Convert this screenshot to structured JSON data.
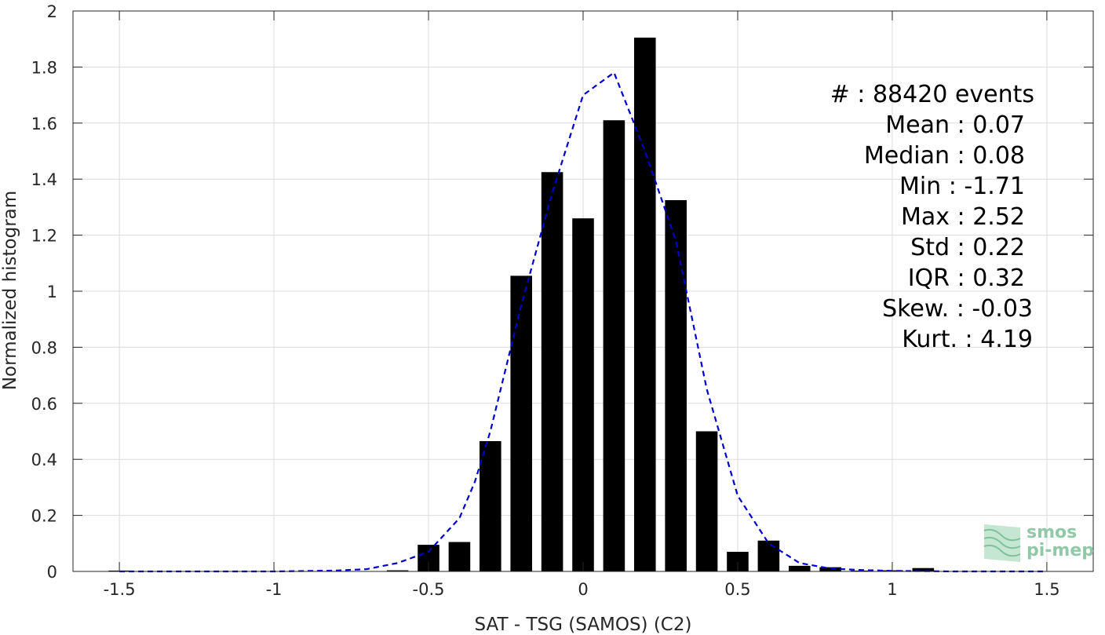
{
  "chart_data": {
    "type": "bar",
    "xlabel": "SAT - TSG (SAMOS) (C2)",
    "ylabel": "Normalized histogram",
    "xlim": [
      -1.65,
      1.65
    ],
    "ylim": [
      0,
      2
    ],
    "grid": true,
    "xticks": [
      "-1.5",
      "-1",
      "-0.5",
      "0",
      "0.5",
      "1",
      "1.5"
    ],
    "xtick_values": [
      -1.5,
      -1,
      -0.5,
      0,
      0.5,
      1,
      1.5
    ],
    "yticks": [
      "0",
      "0.2",
      "0.4",
      "0.6",
      "0.8",
      "1",
      "1.2",
      "1.4",
      "1.6",
      "1.8",
      "2"
    ],
    "ytick_values": [
      0,
      0.2,
      0.4,
      0.6,
      0.8,
      1,
      1.2,
      1.4,
      1.6,
      1.8,
      2
    ],
    "bar_width": 0.07,
    "bars": {
      "x": [
        -1.5,
        -0.6,
        -0.5,
        -0.4,
        -0.3,
        -0.2,
        -0.1,
        0.0,
        0.1,
        0.2,
        0.3,
        0.4,
        0.5,
        0.6,
        0.7,
        0.8,
        0.9,
        1.0,
        1.1
      ],
      "values": [
        0.003,
        0.004,
        0.095,
        0.105,
        0.465,
        1.055,
        1.425,
        1.26,
        1.61,
        1.905,
        1.325,
        0.5,
        0.07,
        0.11,
        0.02,
        0.015,
        0.003,
        0.004,
        0.012
      ]
    },
    "fit_line": {
      "style": "dashed",
      "color": "#0000cc",
      "x": [
        -1.5,
        -1.2,
        -1.0,
        -0.8,
        -0.7,
        -0.6,
        -0.5,
        -0.4,
        -0.35,
        -0.3,
        -0.2,
        -0.1,
        0.0,
        0.1,
        0.2,
        0.3,
        0.4,
        0.5,
        0.6,
        0.7,
        0.8,
        0.9,
        1.0,
        1.1,
        1.2,
        1.3,
        1.5
      ],
      "y": [
        0.0,
        0.0,
        0.0,
        0.003,
        0.008,
        0.03,
        0.07,
        0.19,
        0.32,
        0.5,
        0.95,
        1.35,
        1.7,
        1.78,
        1.5,
        1.18,
        0.65,
        0.27,
        0.1,
        0.03,
        0.01,
        0.005,
        0.002,
        0.001,
        0.0,
        0.0,
        0.0
      ]
    },
    "annotations": [
      "#  : 88420 events",
      "Mean : 0.07",
      "Median : 0.08",
      "Min : -1.71",
      "Max : 2.52",
      "Std : 0.22",
      "IQR : 0.32",
      "Skew. : -0.03",
      "Kurt. : 4.19"
    ],
    "colors": {
      "bars": "#000000",
      "fit": "#0000cc",
      "grid": "#dcdcdc",
      "axis": "#262626"
    }
  },
  "logo": {
    "line1": "smos",
    "line2": "pi-mep"
  }
}
